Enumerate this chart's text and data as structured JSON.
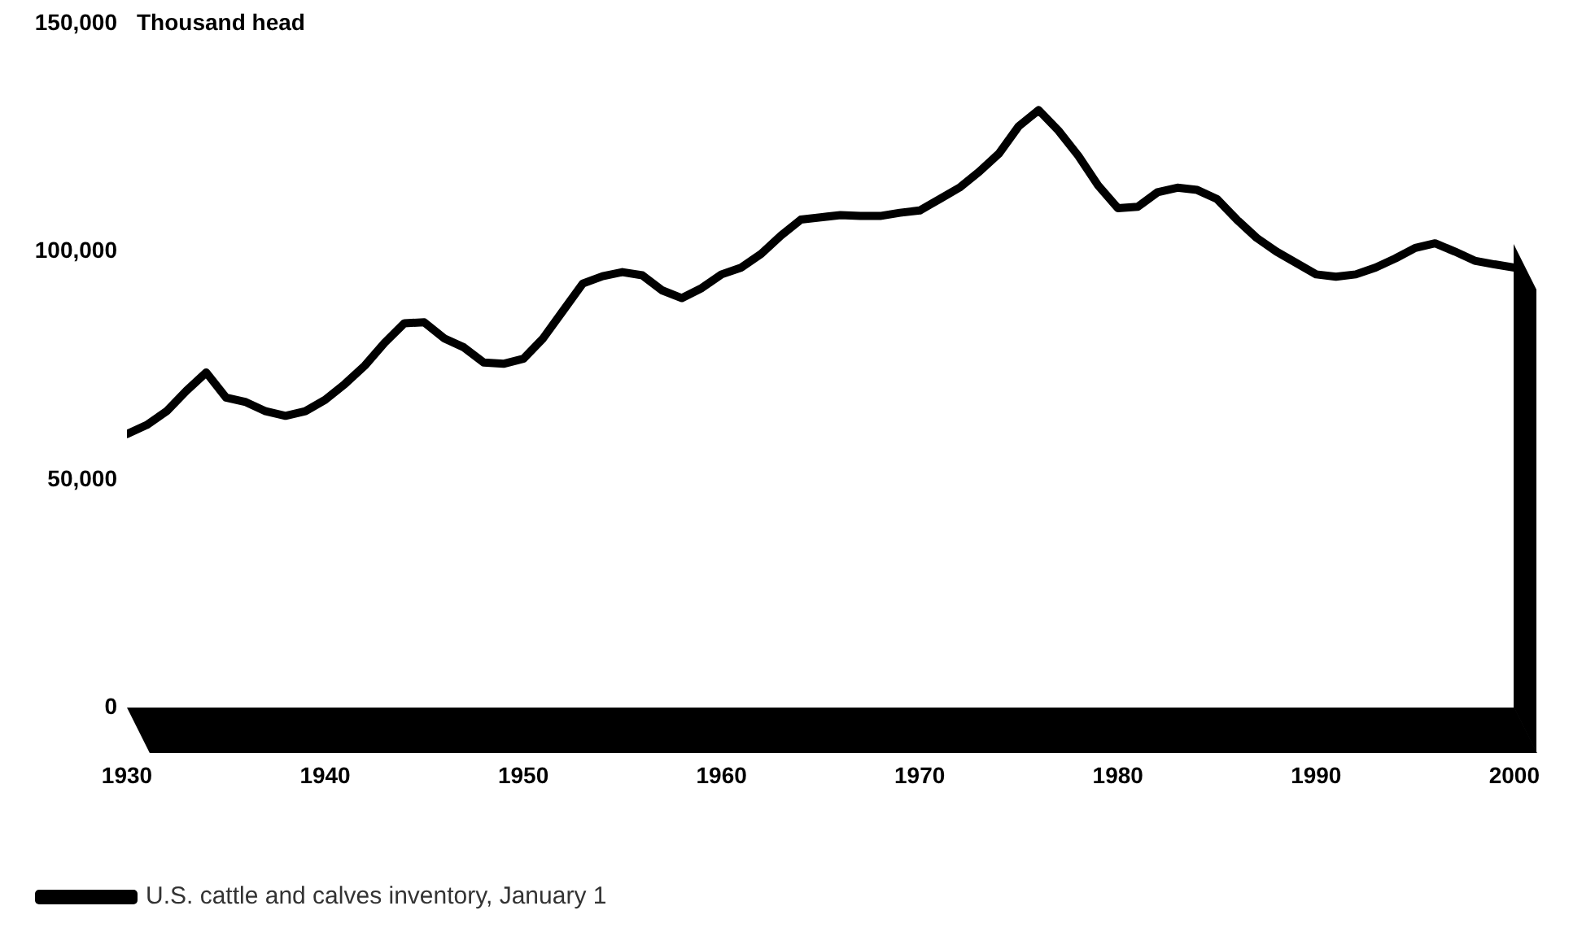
{
  "chart_data": {
    "type": "line",
    "ylabel": "Thousand head",
    "xlim": [
      1930,
      2000
    ],
    "xticks": [
      1930,
      1940,
      1950,
      1960,
      1970,
      1980,
      1990,
      2000
    ],
    "ylim": [
      0,
      150000
    ],
    "yticks": [
      0,
      {
        "value": 50000,
        "label": "50,000"
      },
      {
        "value": 100000,
        "label": "100,000"
      },
      {
        "value": 150000,
        "label": "150,000"
      }
    ],
    "grid": false,
    "legend": "bottom left",
    "marker": "none",
    "line_style": "solid",
    "x": [
      1930,
      1931,
      1932,
      1933,
      1934,
      1935,
      1936,
      1937,
      1938,
      1939,
      1940,
      1941,
      1942,
      1943,
      1944,
      1945,
      1946,
      1947,
      1948,
      1949,
      1950,
      1951,
      1952,
      1953,
      1954,
      1955,
      1956,
      1957,
      1958,
      1959,
      1960,
      1961,
      1962,
      1963,
      1964,
      1965,
      1966,
      1967,
      1968,
      1969,
      1970,
      1971,
      1972,
      1973,
      1974,
      1975,
      1976,
      1977,
      1978,
      1979,
      1980,
      1981,
      1982,
      1983,
      1984,
      1985,
      1986,
      1987,
      1988,
      1989,
      1990,
      1991,
      1992,
      1993,
      1994,
      1995,
      1996,
      1997,
      1998,
      1999,
      2000
    ],
    "series": [
      {
        "name": "U.S. cattle and calves inventory, January 1",
        "color": "#000000",
        "values": [
          60000,
          62000,
          65000,
          69500,
          73500,
          68000,
          67000,
          65000,
          64000,
          65000,
          67500,
          71000,
          75000,
          80000,
          84300,
          84500,
          81000,
          79000,
          75700,
          75400,
          76500,
          81000,
          87000,
          93000,
          94600,
          95500,
          94800,
          91500,
          89800,
          92000,
          95000,
          96500,
          99500,
          103500,
          107000,
          107500,
          108000,
          107800,
          107800,
          108500,
          109000,
          111500,
          114000,
          117500,
          121500,
          127500,
          131000,
          126500,
          121000,
          114500,
          109500,
          109800,
          113000,
          114000,
          113500,
          111500,
          107000,
          103000,
          100000,
          97500,
          95000,
          94500,
          95000,
          96500,
          98500,
          100800,
          101800,
          100000,
          98000,
          97200,
          96500
        ]
      }
    ]
  }
}
